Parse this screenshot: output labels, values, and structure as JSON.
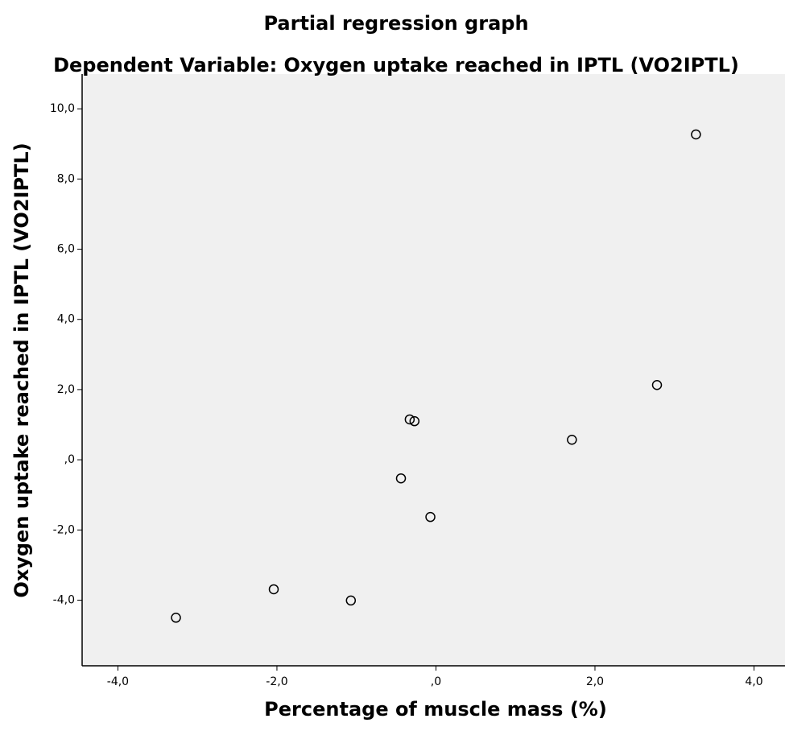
{
  "chart_data": {
    "type": "scatter",
    "title": "Partial regression graph",
    "subtitle": "Dependent Variable: Oxygen uptake reached in IPTL (VO2IPTL)",
    "x_label": "Percentage of muscle mass (%)",
    "y_label": "Oxygen uptake reached in IPTL (VO2IPTL)",
    "x": [
      -3.27,
      -2.04,
      -1.07,
      -0.44,
      -0.33,
      -0.27,
      -0.07,
      1.71,
      2.78,
      3.27
    ],
    "values": [
      -4.5,
      -3.69,
      -4.01,
      -0.53,
      1.15,
      1.1,
      -1.63,
      0.57,
      2.13,
      9.27
    ],
    "color": "#000000",
    "xlim": [
      -4.45,
      4.39
    ],
    "ylim": [
      -5.87,
      10.99
    ],
    "xticks": [
      {
        "value": -4,
        "label": "-4,0"
      },
      {
        "value": -2,
        "label": "-2,0"
      },
      {
        "value": 0,
        "label": ",0"
      },
      {
        "value": 2,
        "label": "2,0"
      },
      {
        "value": 4,
        "label": "4,0"
      }
    ],
    "yticks": [
      {
        "value": -4,
        "label": "-4,0"
      },
      {
        "value": -2,
        "label": "-2,0"
      },
      {
        "value": 0,
        "label": ",0"
      },
      {
        "value": 2,
        "label": "2,0"
      },
      {
        "value": 4,
        "label": "4,0"
      },
      {
        "value": 6,
        "label": "6,0"
      },
      {
        "value": 8,
        "label": "8,0"
      },
      {
        "value": 10,
        "label": "10,0"
      }
    ],
    "grid": false
  }
}
